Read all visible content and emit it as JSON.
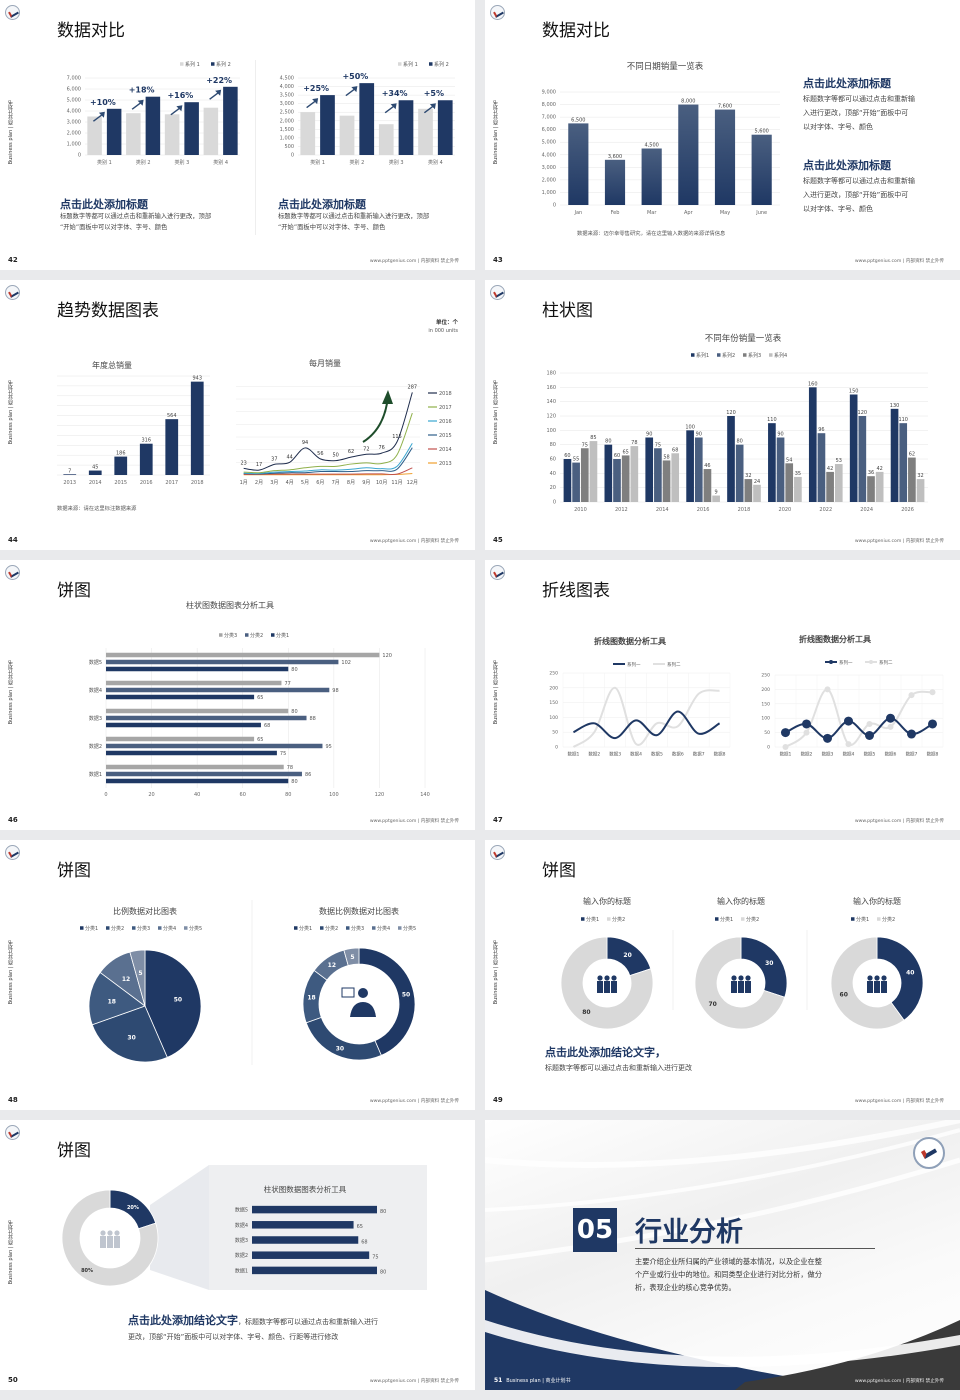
{
  "common": {
    "side_text": "Business plan | 商业计划书",
    "footer": "www.pptgenius.com | 内部资料 禁止外传"
  },
  "colors": {
    "navy": "#1f3864",
    "slate": "#4a5f80",
    "grey": "#7f7f7f",
    "light": "#d0d0d0",
    "accent_arrow": "#1e4d2b"
  },
  "slides": [
    {
      "page": "42",
      "title": "数据对比",
      "blocks": [
        {
          "heading": "点击此处添加标题",
          "lines": [
            "标题数字等都可以通过点击和重新输入进行更改，顶部",
            "“开始”面板中可以对字体、字号、颜色"
          ]
        },
        {
          "heading": "点击此处添加标题",
          "lines": [
            "标题数字等都可以通过点击和重新输入进行更改，顶部",
            "“开始”面板中可以对字体、字号、颜色"
          ]
        }
      ]
    },
    {
      "page": "43",
      "title": "数据对比",
      "source": "数据来源：迈尔幸零售研究，请在这里输入数据的来源详情信息",
      "blocks": [
        {
          "heading": "点击此处添加标题",
          "lines": [
            "标题数字等都可以通过点击和重新输",
            "入进行更改，顶部“开始”面板中可",
            "以对字体、字号、颜色"
          ]
        },
        {
          "heading": "点击此处添加标题",
          "lines": [
            "标题数字等都可以通过点击和重新输",
            "入进行更改，顶部“开始”面板中可",
            "以对字体、字号、颜色"
          ]
        }
      ]
    },
    {
      "page": "44",
      "title": "趋势数据图表",
      "unit": "单位：个",
      "unit_en": "in 000 units",
      "source": "数据来源：请在这里标注数据来源"
    },
    {
      "page": "45",
      "title": "柱状图"
    },
    {
      "page": "46",
      "title": "饼图"
    },
    {
      "page": "47",
      "title": "折线图表"
    },
    {
      "page": "48",
      "title": "饼图"
    },
    {
      "page": "49",
      "title": "饼图",
      "conclusion": "点击此处添加结论文字，",
      "conclusion_body": "标题数字等都可以通过点击和重新输入进行更改"
    },
    {
      "page": "50",
      "title": "饼图",
      "conclusion": "点击此处添加结论文字",
      "conclusion_rest": "，标题数字等都可以通过点击和重新输入进行",
      "conclusion_line2": "更改，顶部“开始”面板中可以对字体、字号、颜色、行距等进行修改"
    },
    {
      "page": "51",
      "number": "05",
      "title": "行业分析",
      "lines": [
        "主要介绍企业所归属的产业领域的基本情况，以及企业在整",
        "个产业或行业中的地位。和同类型企业进行对比分析，做分",
        "析，表现企业的核心竞争优势。"
      ],
      "footer_left": "Business plan | 商业计划书"
    }
  ],
  "chart_data": [
    {
      "type": "bar",
      "categories": [
        "类别 1",
        "类别 2",
        "类别 3",
        "类别 4"
      ],
      "ylim": [
        0,
        7000
      ],
      "ystep": 1000,
      "legend": "top-right",
      "series": [
        {
          "name": "系列 1",
          "color": "#d9d9d9",
          "values": [
            3500,
            3800,
            3700,
            4300
          ]
        },
        {
          "name": "系列 2",
          "color": "#1f3864",
          "values": [
            4200,
            5300,
            4800,
            6200
          ]
        }
      ],
      "annotations": [
        "+10%",
        "+18%",
        "+16%",
        "+22%"
      ]
    },
    {
      "type": "bar",
      "categories": [
        "类别 1",
        "类别 2",
        "类别 3",
        "类别 4"
      ],
      "ylim": [
        0,
        4500
      ],
      "ystep": 500,
      "legend": "top-right",
      "series": [
        {
          "name": "系列 1",
          "color": "#d9d9d9",
          "values": [
            2500,
            2300,
            1800,
            2700
          ]
        },
        {
          "name": "系列 2",
          "color": "#1f3864",
          "values": [
            3500,
            4200,
            3200,
            3200
          ]
        }
      ],
      "annotations": [
        "+25%",
        "+50%",
        "+34%",
        "+5%"
      ]
    },
    {
      "type": "bar",
      "title": "不同日期销量一览表",
      "categories": [
        "Jan",
        "Feb",
        "Mar",
        "Apr",
        "May",
        "June"
      ],
      "ylim": [
        0,
        9000
      ],
      "ystep": 1000,
      "data_labels": true,
      "series": [
        {
          "color": "#1f3864",
          "values": [
            6500,
            3600,
            4500,
            8000,
            7600,
            5600
          ]
        }
      ]
    },
    {
      "type": "bar",
      "title": "年度总销量",
      "categories": [
        "2013",
        "2014",
        "2015",
        "2016",
        "2017",
        "2018"
      ],
      "ylim": [
        0,
        1000
      ],
      "ystep": 100,
      "hide_yticks": true,
      "data_labels": true,
      "series": [
        {
          "color": "#1f3864",
          "values": [
            7,
            45,
            186,
            316,
            564,
            943
          ]
        }
      ]
    },
    {
      "type": "line",
      "title": "每月销量",
      "categories": [
        "1月",
        "2月",
        "3月",
        "4月",
        "5月",
        "6月",
        "7月",
        "8月",
        "9月",
        "10月",
        "11月",
        "12月"
      ],
      "ylim": [
        0,
        330
      ],
      "smooth": true,
      "legend": "right",
      "labeled_series": "2018",
      "series": [
        {
          "name": "2018",
          "color": "#1f2d4d",
          "values": [
            23,
            17,
            37,
            44,
            94,
            56,
            50,
            62,
            72,
            76,
            115,
            287
          ]
        },
        {
          "name": "2017",
          "color": "#8fb04a",
          "values": [
            10,
            8,
            15,
            18,
            25,
            30,
            30,
            38,
            42,
            40,
            70,
            215
          ]
        },
        {
          "name": "2016",
          "color": "#3aa6d0",
          "values": [
            6,
            5,
            10,
            12,
            14,
            18,
            17,
            20,
            25,
            22,
            30,
            110
          ]
        },
        {
          "name": "2015",
          "color": "#2e5f8a",
          "values": [
            5,
            4,
            6,
            8,
            8,
            12,
            12,
            12,
            15,
            15,
            20,
            95
          ]
        },
        {
          "name": "2014",
          "color": "#c0504d",
          "values": [
            2,
            2,
            3,
            3,
            3,
            3,
            3,
            3,
            4,
            4,
            3,
            25
          ]
        },
        {
          "name": "2013",
          "color": "#f0a030",
          "values": [
            1,
            1,
            1,
            1,
            1,
            1,
            1,
            1,
            1,
            1,
            2,
            5
          ]
        }
      ]
    },
    {
      "type": "bar",
      "title": "不同年份销量一览表",
      "categories": [
        "2010",
        "2012",
        "2014",
        "2016",
        "2018",
        "2020",
        "2022",
        "2024",
        "2026"
      ],
      "ylim": [
        0,
        180
      ],
      "ystep": 20,
      "data_labels": true,
      "legend": "top",
      "series": [
        {
          "name": "系列1",
          "color": "#1f3864",
          "values": [
            60,
            80,
            90,
            100,
            120,
            110,
            160,
            150,
            130
          ]
        },
        {
          "name": "系列2",
          "color": "#4a5f80",
          "values": [
            55,
            60,
            75,
            90,
            80,
            90,
            96,
            120,
            110
          ]
        },
        {
          "name": "系列3",
          "color": "#7f7f7f",
          "values": [
            75,
            65,
            58,
            46,
            32,
            54,
            42,
            36,
            62
          ]
        },
        {
          "name": "系列4",
          "color": "#bfbfbf",
          "values": [
            85,
            78,
            68,
            9,
            24,
            35,
            53,
            42,
            32
          ]
        }
      ]
    },
    {
      "type": "hbar",
      "title": "柱状图数据图表分析工具",
      "categories": [
        "数据1",
        "数据2",
        "数据3",
        "数据4",
        "数据5"
      ],
      "xlim": [
        0,
        140
      ],
      "xstep": 20,
      "data_labels": true,
      "legend": "top",
      "series": [
        {
          "name": "分类3",
          "color": "#a6a6a6",
          "values": [
            78,
            65,
            80,
            77,
            120
          ]
        },
        {
          "name": "分类2",
          "color": "#4a5f80",
          "values": [
            86,
            95,
            88,
            98,
            102
          ]
        },
        {
          "name": "分类1",
          "color": "#1f3864",
          "values": [
            80,
            75,
            68,
            65,
            80
          ]
        }
      ]
    },
    {
      "type": "line",
      "title": "折线图数据分析工具",
      "categories": [
        "数据1",
        "数据2",
        "数据3",
        "数据4",
        "数据5",
        "数据6",
        "数据7",
        "数据8"
      ],
      "ylim": [
        0,
        250
      ],
      "ystep": 50,
      "smooth": true,
      "legend": "top",
      "series": [
        {
          "name": "系列一",
          "color": "#1f3864",
          "values": [
            50,
            80,
            30,
            90,
            40,
            120,
            45,
            80
          ]
        },
        {
          "name": "系列二",
          "color": "#e0e0e0",
          "values": [
            0,
            50,
            200,
            10,
            80,
            70,
            180,
            190
          ]
        }
      ]
    },
    {
      "type": "line",
      "title": "折线图数据分析工具",
      "categories": [
        "数据1",
        "数据2",
        "数据3",
        "数据4",
        "数据5",
        "数据6",
        "数据7",
        "数据8"
      ],
      "ylim": [
        0,
        250
      ],
      "ystep": 50,
      "markers": true,
      "smooth": true,
      "legend": "top",
      "series": [
        {
          "name": "系列一",
          "color": "#1f3864",
          "values": [
            50,
            80,
            30,
            90,
            40,
            100,
            45,
            80
          ]
        },
        {
          "name": "系列二",
          "color": "#e0e0e0",
          "values": [
            0,
            50,
            200,
            10,
            80,
            70,
            180,
            190
          ]
        }
      ]
    },
    {
      "type": "pie",
      "title": "比例数据对比图表",
      "legend": "top",
      "labels": [
        "分类1",
        "分类2",
        "分类3",
        "分类4",
        "分类5"
      ],
      "values": [
        50,
        30,
        18,
        12,
        5
      ],
      "colors": [
        "#1f3864",
        "#2e4a72",
        "#3e5a80",
        "#5a7090",
        "#7f8ea6"
      ]
    },
    {
      "type": "donut",
      "title": "数据比例数据对比图表",
      "legend": "top",
      "labels": [
        "分类1",
        "分类2",
        "分类3",
        "分类4",
        "分类5"
      ],
      "values": [
        50,
        30,
        18,
        12,
        5
      ],
      "colors": [
        "#1f3864",
        "#2e4a72",
        "#3e5a80",
        "#5a7090",
        "#7f8ea6"
      ]
    },
    {
      "type": "donut",
      "title": "输入你的标题",
      "legend": "top",
      "labels": [
        "分类1",
        "分类2"
      ],
      "values": [
        20,
        80
      ],
      "colors": [
        "#1f3864",
        "#d9d9d9"
      ]
    },
    {
      "type": "donut",
      "title": "输入你的标题",
      "legend": "top",
      "labels": [
        "分类1",
        "分类2"
      ],
      "values": [
        30,
        70
      ],
      "colors": [
        "#1f3864",
        "#d9d9d9"
      ]
    },
    {
      "type": "donut",
      "title": "输入你的标题",
      "legend": "top",
      "labels": [
        "分类1",
        "分类2"
      ],
      "values": [
        40,
        60
      ],
      "colors": [
        "#1f3864",
        "#d9d9d9"
      ]
    },
    {
      "type": "donut",
      "labels": [
        "",
        ""
      ],
      "values": [
        20,
        80
      ],
      "value_labels": [
        "20%",
        "80%"
      ],
      "colors": [
        "#1f3864",
        "#d9d9d9"
      ]
    },
    {
      "type": "hbar",
      "title": "柱状图数据图表分析工具",
      "categories": [
        "数据1",
        "数据2",
        "数据3",
        "数据4",
        "数据5"
      ],
      "xlim": [
        0,
        80
      ],
      "data_labels": true,
      "series": [
        {
          "color": "#1f3864",
          "values": [
            80,
            75,
            68,
            65,
            80
          ]
        }
      ]
    }
  ]
}
